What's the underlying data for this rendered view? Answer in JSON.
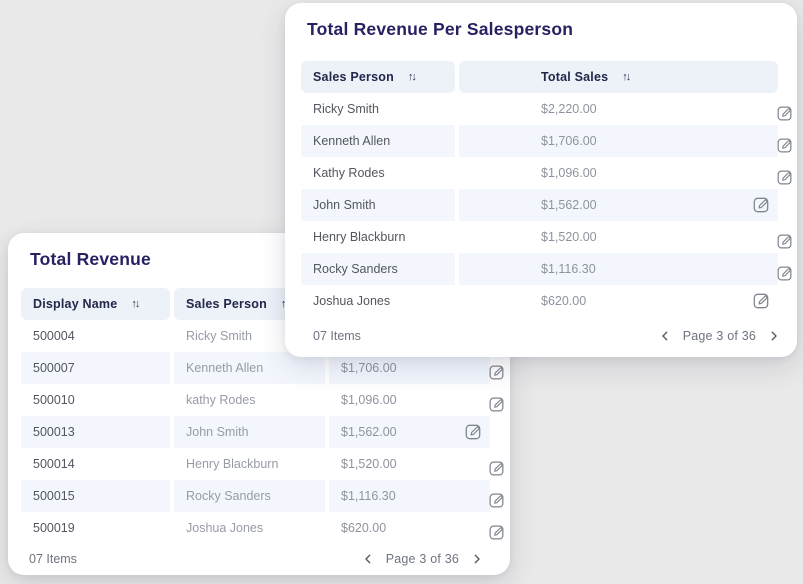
{
  "icons": {
    "sort": "↑↓"
  },
  "colors": {
    "title": "#262262",
    "header_bg": "#edf1f8",
    "row_highlight": "#f3f7fd",
    "icon_gray": "#80858f"
  },
  "cards": {
    "revenue_per_salesperson": {
      "title": "Total Revenue Per Salesperson",
      "columns": [
        {
          "label": "Sales Person",
          "sortable": true
        },
        {
          "label": "Total Sales",
          "sortable": true
        }
      ],
      "rows": [
        {
          "cells": [
            "Ricky Smith",
            "$2,220.00"
          ],
          "highlighted": false,
          "icon_inset": false
        },
        {
          "cells": [
            "Kenneth Allen",
            "$1,706.00"
          ],
          "highlighted": true,
          "icon_inset": false
        },
        {
          "cells": [
            "Kathy Rodes",
            "$1,096.00"
          ],
          "highlighted": false,
          "icon_inset": false
        },
        {
          "cells": [
            "John Smith",
            "$1,562.00"
          ],
          "highlighted": true,
          "icon_inset": true
        },
        {
          "cells": [
            "Henry Blackburn",
            "$1,520.00"
          ],
          "highlighted": false,
          "icon_inset": false
        },
        {
          "cells": [
            "Rocky Sanders",
            "$1,116.30"
          ],
          "highlighted": true,
          "icon_inset": false
        },
        {
          "cells": [
            "Joshua Jones",
            "$620.00"
          ],
          "highlighted": false,
          "icon_inset": true
        }
      ],
      "footer": {
        "items_label": "07 Items",
        "page_label": "Page 3 of 36"
      }
    },
    "total_revenue": {
      "title": "Total Revenue",
      "columns": [
        {
          "label": "Display Name",
          "sortable": true
        },
        {
          "label": "Sales Person",
          "sortable": true
        },
        {
          "label": "",
          "sortable": false
        }
      ],
      "rows": [
        {
          "cells": [
            "500004",
            "Ricky Smith",
            ""
          ],
          "highlighted": false,
          "icon_inset": false
        },
        {
          "cells": [
            "500007",
            "Kenneth Allen",
            "$1,706.00"
          ],
          "highlighted": true,
          "icon_inset": false
        },
        {
          "cells": [
            "500010",
            "kathy Rodes",
            "$1,096.00"
          ],
          "highlighted": false,
          "icon_inset": false
        },
        {
          "cells": [
            "500013",
            "John Smith",
            "$1,562.00"
          ],
          "highlighted": true,
          "icon_inset": true
        },
        {
          "cells": [
            "500014",
            "Henry Blackburn",
            "$1,520.00"
          ],
          "highlighted": false,
          "icon_inset": false
        },
        {
          "cells": [
            "500015",
            "Rocky Sanders",
            "$1,116.30"
          ],
          "highlighted": true,
          "icon_inset": false
        },
        {
          "cells": [
            "500019",
            "Joshua Jones",
            "$620.00"
          ],
          "highlighted": false,
          "icon_inset": false
        }
      ],
      "footer": {
        "items_label": "07 Items",
        "page_label": "Page 3 of 36"
      }
    }
  }
}
